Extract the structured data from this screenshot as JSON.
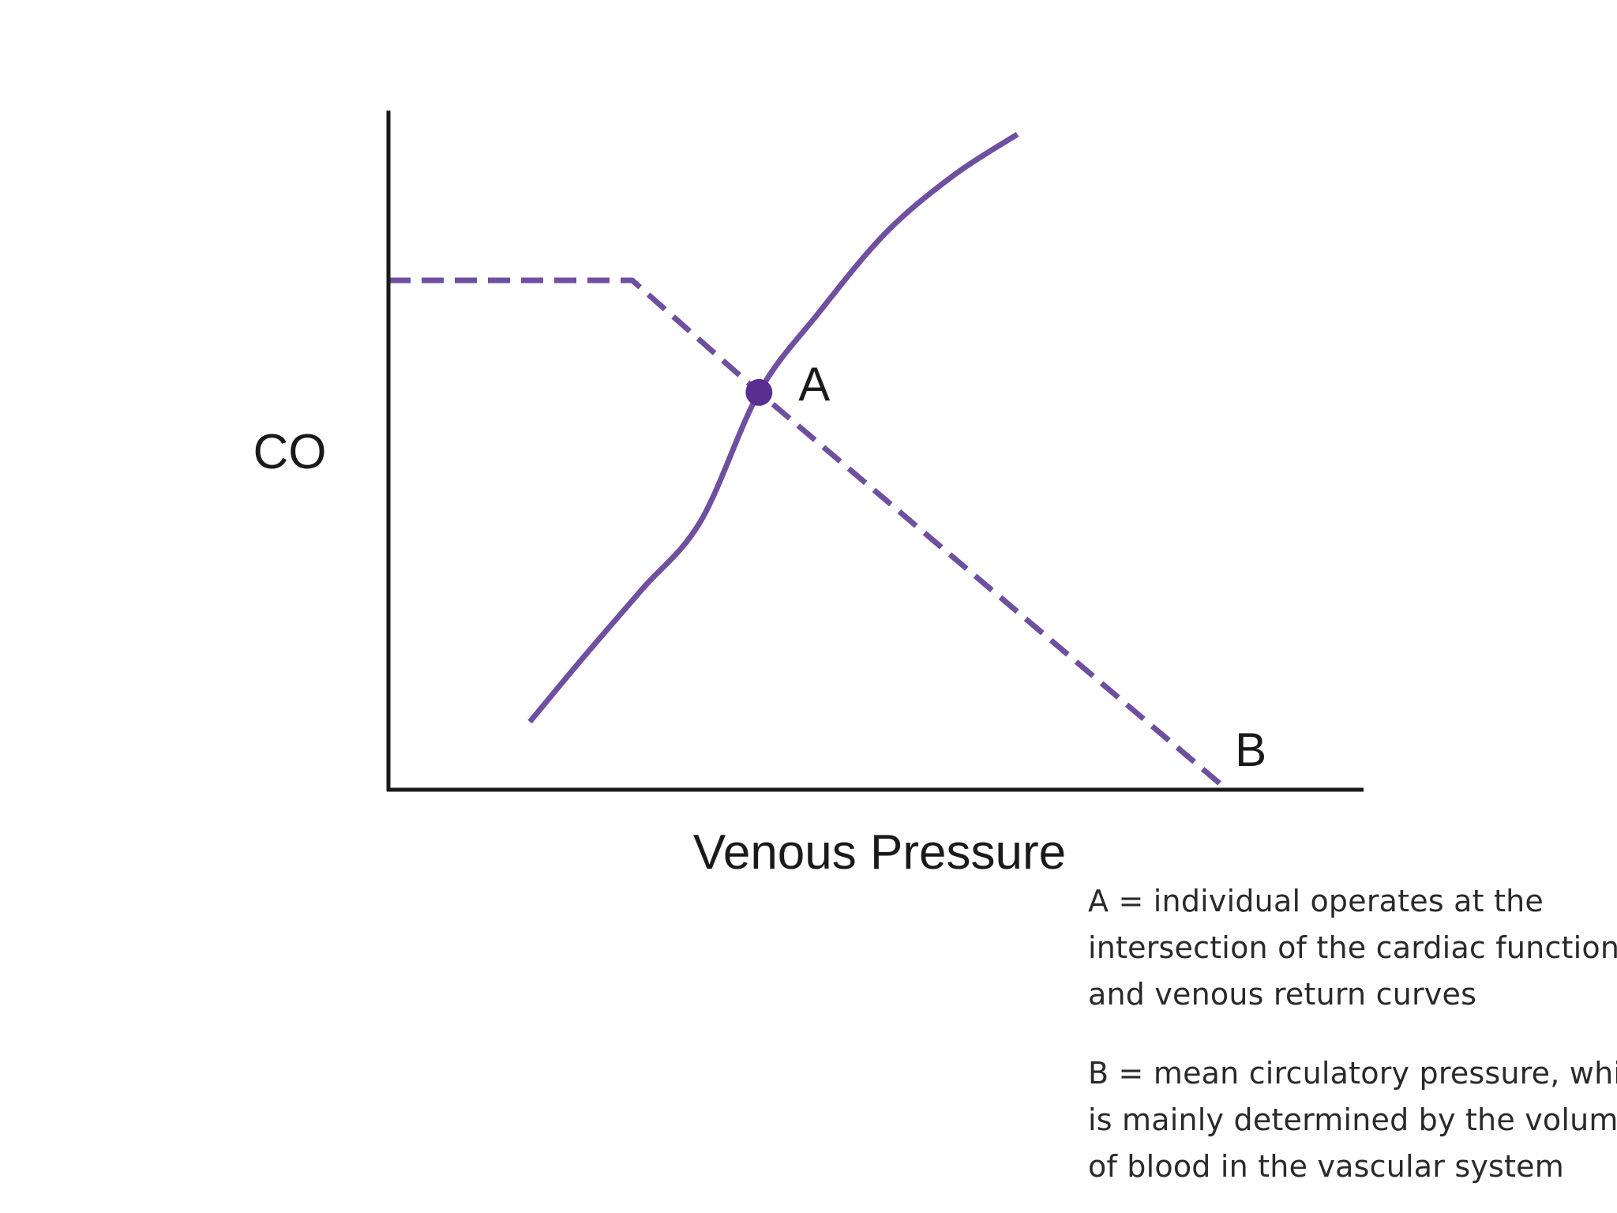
{
  "chart_data": {
    "type": "line",
    "xlabel": "Venous Pressure",
    "ylabel": "CO",
    "xlim": [
      0,
      10
    ],
    "ylim": [
      0,
      10
    ],
    "grid": false,
    "color": "#6e4fa0",
    "point_color": "#5a2d91",
    "series": [
      {
        "style": "solid",
        "x": [
          1.45,
          2.0,
          2.6,
          3.2,
          3.8,
          4.4,
          5.1,
          5.8,
          6.45
        ],
        "y": [
          1.0,
          1.95,
          2.95,
          3.95,
          5.85,
          7.0,
          8.2,
          9.05,
          9.65
        ]
      },
      {
        "style": "dashed",
        "x": [
          0,
          2.5,
          3.8,
          8.6
        ],
        "y": [
          7.5,
          7.5,
          5.85,
          0
        ]
      }
    ],
    "points": [
      {
        "label": "A",
        "x": 3.8,
        "y": 5.85
      },
      {
        "label": "B",
        "x": 8.6,
        "y": 0
      }
    ]
  },
  "legend": {
    "a_lines": [
      "A = individual operates at the",
      "intersection of the cardiac function",
      "and venous return curves"
    ],
    "b_lines": [
      "B = mean circulatory pressure, which",
      "is mainly determined by the volume",
      "of blood in the vascular system"
    ]
  }
}
